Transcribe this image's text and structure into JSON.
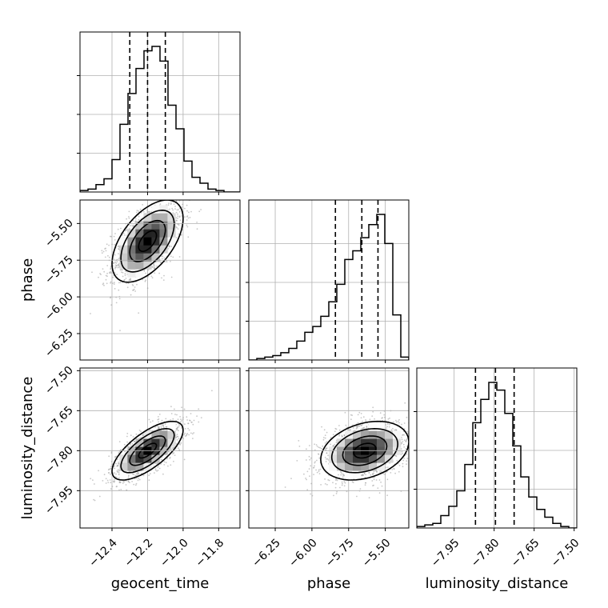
{
  "chart_data": {
    "type": "corner",
    "parameters": [
      "geocent_time",
      "phase",
      "luminosity_distance"
    ],
    "ranges": {
      "geocent_time": [
        -12.58,
        -11.68
      ],
      "phase": [
        -6.43,
        -5.34
      ],
      "luminosity_distance": [
        -8.09,
        -7.49
      ]
    },
    "ticks": {
      "geocent_time": [
        -12.4,
        -12.2,
        -12.0,
        -11.8
      ],
      "phase": [
        -6.25,
        -6.0,
        -5.75,
        -5.5
      ],
      "luminosity_distance": [
        -7.95,
        -7.8,
        -7.65,
        -7.5
      ]
    },
    "tick_labels": {
      "geocent_time": [
        "−12.4",
        "−12.2",
        "−12.0",
        "−11.8"
      ],
      "phase": [
        "−6.25",
        "−6.00",
        "−5.75",
        "−5.50"
      ],
      "luminosity_distance": [
        "−7.95",
        "−7.80",
        "−7.65",
        "−7.50"
      ]
    },
    "quantiles": {
      "geocent_time": [
        -12.3,
        -12.2,
        -12.1
      ],
      "phase": [
        -5.84,
        -5.66,
        -5.55
      ],
      "luminosity_distance": [
        -7.87,
        -7.795,
        -7.725
      ]
    },
    "histograms": {
      "geocent_time": {
        "edges_start": -12.58,
        "bin_width": 0.045,
        "counts": [
          1,
          2,
          5,
          9,
          22,
          46,
          67,
          84,
          96,
          99,
          89,
          59,
          43,
          21,
          10,
          6,
          2,
          1,
          0,
          0
        ]
      },
      "phase": {
        "edges_start": -6.43,
        "bin_width": 0.0545,
        "counts": [
          0,
          1,
          2,
          3,
          5,
          8,
          13,
          19,
          23,
          30,
          40,
          52,
          69,
          75,
          84,
          93,
          100,
          80,
          31,
          2
        ]
      },
      "luminosity_distance": {
        "edges_start": -8.09,
        "bin_width": 0.03,
        "counts": [
          1,
          2,
          3,
          8,
          14,
          24,
          41,
          68,
          83,
          94,
          89,
          74,
          53,
          33,
          20,
          12,
          7,
          3,
          1,
          0
        ]
      }
    },
    "correlations": [
      {
        "x": "geocent_time",
        "y": "phase",
        "mean": [
          -12.2,
          -5.62
        ],
        "sd": [
          0.1,
          0.14
        ],
        "rho": 0.55
      },
      {
        "x": "geocent_time",
        "y": "luminosity_distance",
        "mean": [
          -12.2,
          -7.8
        ],
        "sd": [
          0.1,
          0.055
        ],
        "rho": 0.7
      },
      {
        "x": "phase",
        "y": "luminosity_distance",
        "mean": [
          -5.64,
          -7.8
        ],
        "sd": [
          0.15,
          0.055
        ],
        "rho": 0.3
      }
    ],
    "contour_levels": [
      "0.5",
      "1.0",
      "1.5",
      "2.0"
    ],
    "grid": true,
    "colors": {
      "line": "#000000",
      "grid": "#b0b0b0",
      "points": "#9a9a9a"
    }
  }
}
